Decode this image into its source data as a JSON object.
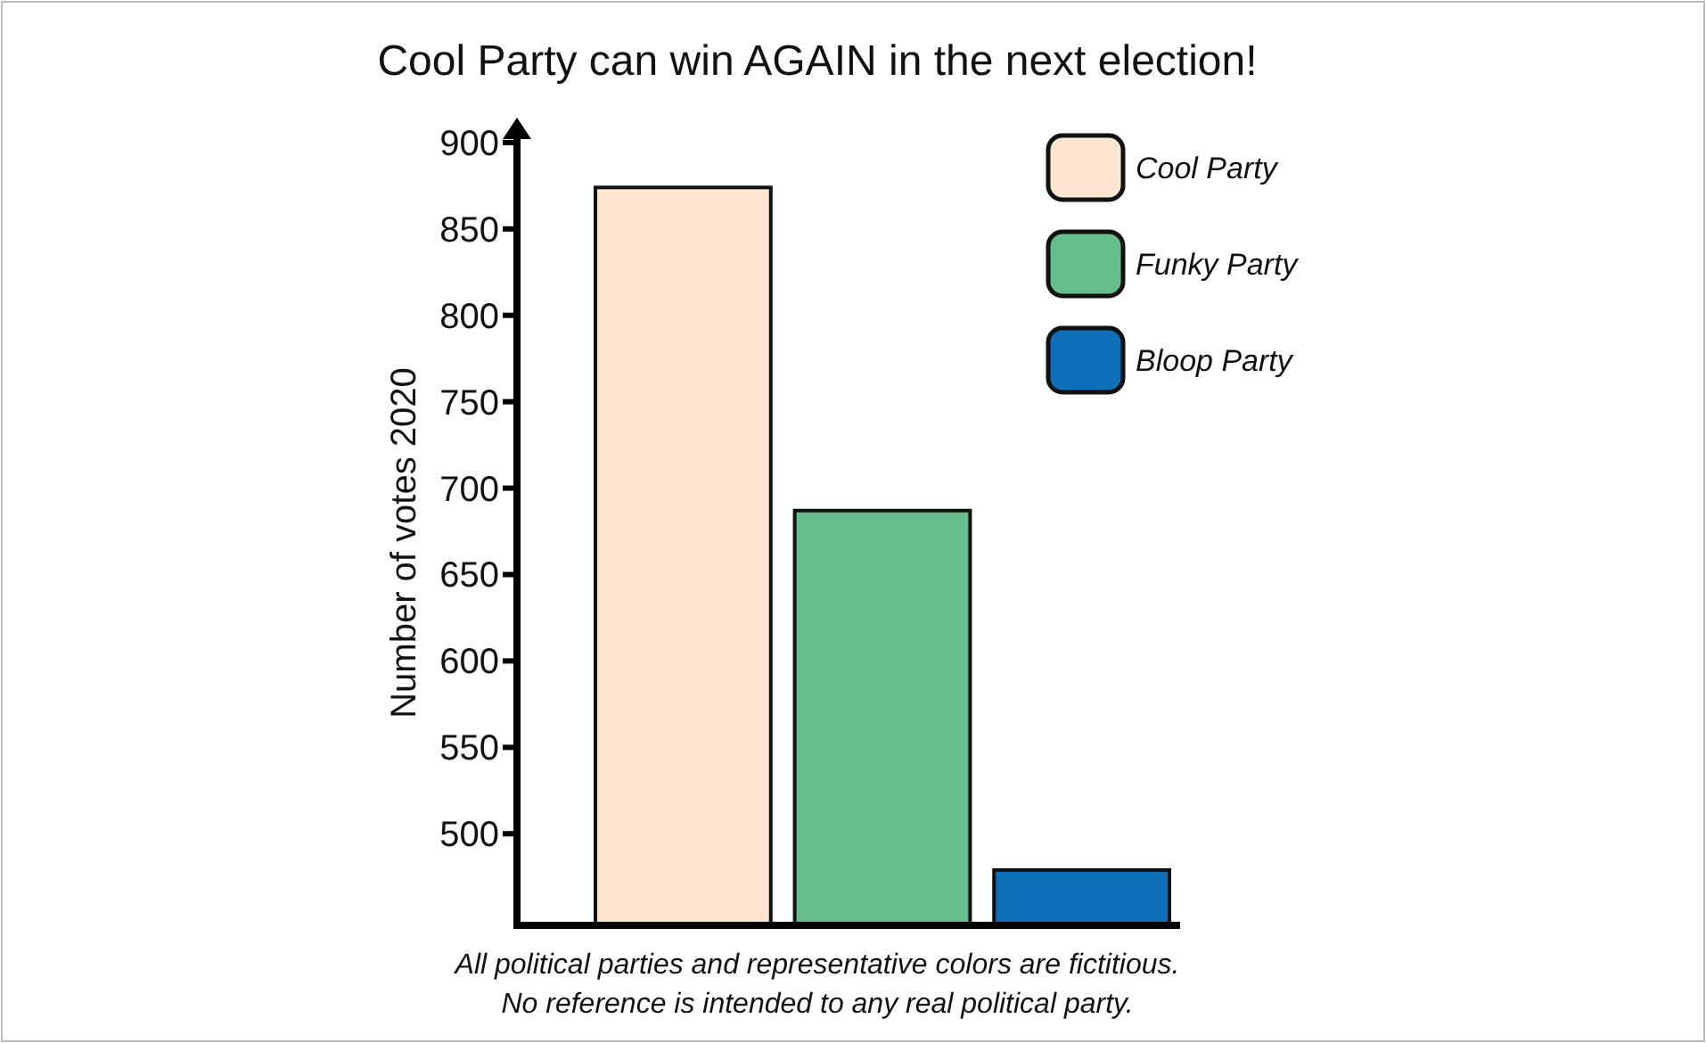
{
  "chart_data": {
    "type": "bar",
    "title": "Cool Party can win AGAIN in the next election!",
    "ylabel": "Number of votes 2020",
    "categories": [
      null
    ],
    "series": [
      {
        "name": "Cool Party",
        "color": "#fde6cf",
        "values": [
          874
        ]
      },
      {
        "name": "Funky Party",
        "color": "#66bd8c",
        "values": [
          687
        ]
      },
      {
        "name": "Bloop Party",
        "color": "#0f6eb8",
        "values": [
          479
        ]
      }
    ],
    "ylim": [
      447,
      902
    ],
    "yticks": [
      500,
      550,
      600,
      650,
      700,
      750,
      800,
      850,
      900
    ],
    "tick_labels": "y",
    "grid": false,
    "legend": "top right",
    "annotations": [
      "All political parties and representative colors are fictitious.",
      "No reference is intended to any real political party."
    ]
  }
}
